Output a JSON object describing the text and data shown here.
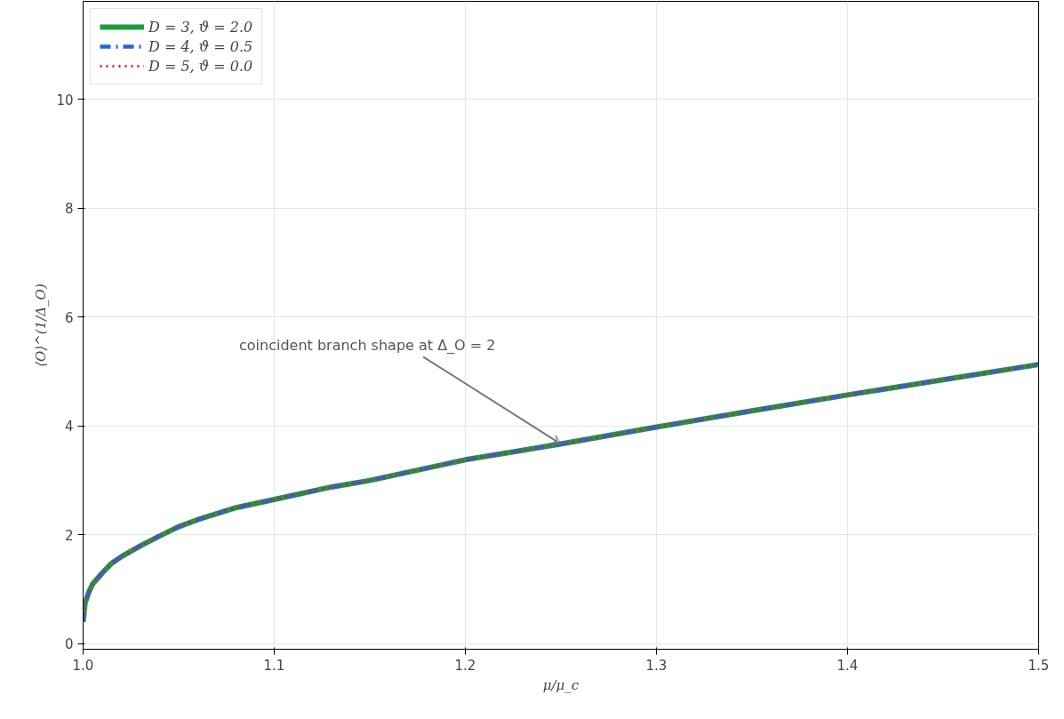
{
  "chart_data": {
    "type": "line",
    "xlabel": "μ/μ_c",
    "ylabel": "⟨O⟩^(1/Δ_O)",
    "x": [
      1.0,
      1.001,
      1.003,
      1.005,
      1.01,
      1.015,
      1.02,
      1.03,
      1.04,
      1.05,
      1.06,
      1.08,
      1.1,
      1.13,
      1.15,
      1.2,
      1.25,
      1.3,
      1.35,
      1.4,
      1.45,
      1.5
    ],
    "series": [
      {
        "name": "D = 3, ϑ = 2.0",
        "color": "#1f9a3c",
        "line_style": "solid",
        "values": [
          0.4,
          0.75,
          0.95,
          1.1,
          1.3,
          1.48,
          1.6,
          1.8,
          1.98,
          2.15,
          2.28,
          2.5,
          2.65,
          2.88,
          3.0,
          3.38,
          3.67,
          3.98,
          4.28,
          4.57,
          4.85,
          5.13
        ]
      },
      {
        "name": "D = 4, ϑ = 0.5",
        "color": "#2a66d0",
        "line_style": "dashdot",
        "values": [
          0.4,
          0.75,
          0.95,
          1.1,
          1.3,
          1.48,
          1.6,
          1.8,
          1.98,
          2.15,
          2.28,
          2.5,
          2.65,
          2.88,
          3.0,
          3.38,
          3.67,
          3.98,
          4.28,
          4.57,
          4.85,
          5.13
        ]
      },
      {
        "name": "D = 5, ϑ = 0.0",
        "color": "#cc2a2a",
        "line_style": "dotted",
        "values": [
          0.4,
          0.75,
          0.95,
          1.1,
          1.3,
          1.48,
          1.6,
          1.8,
          1.98,
          2.15,
          2.28,
          2.5,
          2.65,
          2.88,
          3.0,
          3.38,
          3.67,
          3.98,
          4.28,
          4.57,
          4.85,
          5.13
        ]
      }
    ],
    "xlim": [
      1.0,
      1.5
    ],
    "ylim": [
      -0.1,
      11.8
    ],
    "xticks": [
      {
        "value": 1.0,
        "label": "1.0"
      },
      1.1,
      1.2,
      1.3,
      1.4,
      1.5
    ],
    "yticks": [
      0,
      2,
      4,
      6,
      8,
      10
    ],
    "grid": true,
    "legend": "top left",
    "marker": "none",
    "annotations": [
      {
        "text": "coincident branch shape at Δ_O = 2",
        "x": 1.25,
        "y": 3.67
      }
    ]
  }
}
